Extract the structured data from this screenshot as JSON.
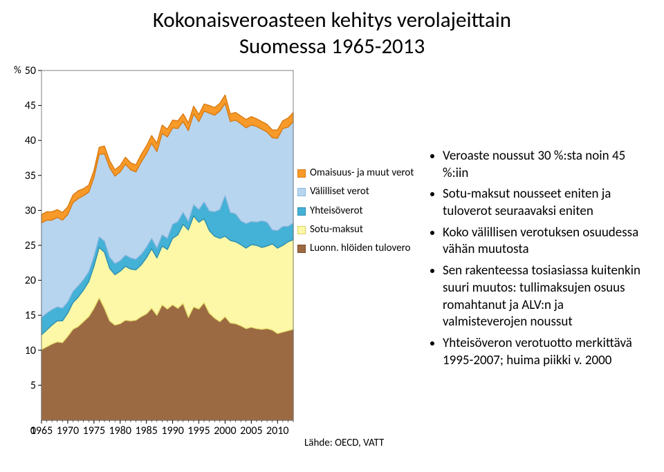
{
  "title": {
    "line1": "Kokonaisveroasteen kehitys  verolajeittain",
    "line2": "Suomessa 1965-2013",
    "fontsize": 31
  },
  "chart": {
    "type": "area-stacked",
    "y_title": "%",
    "ylim": [
      0,
      50
    ],
    "ytick_step": 5,
    "xlim": [
      1965,
      2013
    ],
    "xtick_step": 5,
    "xtick_last": 2010,
    "plot_bg": "#ffffff",
    "plot_border": "#808080",
    "axis_text_color": "#000000",
    "year_step_plot": 1,
    "series": [
      {
        "key": "luonn",
        "label": "Luonn. hlöiden tulovero",
        "fill": "#9c6a42",
        "stroke": "#7a4c28",
        "legend_swatch_border": "#7a4c28",
        "values": [
          10.1,
          10.5,
          10.9,
          11.2,
          11.1,
          12.0,
          13.0,
          13.4,
          14.1,
          14.8,
          16.0,
          17.5,
          16.0,
          14.2,
          13.6,
          13.8,
          14.3,
          14.2,
          14.3,
          14.8,
          15.2,
          16.0,
          15.0,
          16.5,
          15.9,
          16.5,
          16.0,
          16.7,
          14.7,
          16.2,
          15.9,
          16.8,
          15.3,
          14.6,
          14.1,
          14.8,
          13.9,
          13.8,
          13.5,
          13.1,
          13.3,
          13.1,
          13.0,
          13.1,
          12.9,
          12.4,
          12.6,
          12.8,
          13.0
        ]
      },
      {
        "key": "sotu",
        "label": "Sotu-maksut",
        "fill": "#fdf8a7",
        "stroke": "#e8e070",
        "legend_swatch_border": "#d8d060",
        "values": [
          2.1,
          2.4,
          2.7,
          3.0,
          3.1,
          3.3,
          3.8,
          4.2,
          4.5,
          5.0,
          6.0,
          7.2,
          8.0,
          7.5,
          7.2,
          7.5,
          7.7,
          7.4,
          7.2,
          7.4,
          8.0,
          8.5,
          8.2,
          8.4,
          8.5,
          9.5,
          10.5,
          11.3,
          12.5,
          13.0,
          12.4,
          12.0,
          11.8,
          11.7,
          11.9,
          11.5,
          11.8,
          11.7,
          11.6,
          11.5,
          11.8,
          11.9,
          11.7,
          11.8,
          12.3,
          12.2,
          12.4,
          12.7,
          12.8
        ]
      },
      {
        "key": "yhteiso",
        "label": "Yhteisöverot",
        "fill": "#44b1d6",
        "stroke": "#2e8fb0",
        "legend_swatch_border": "#2e8fb0",
        "values": [
          2.5,
          2.4,
          2.2,
          2.0,
          1.8,
          1.6,
          1.6,
          1.6,
          1.5,
          1.4,
          1.4,
          1.5,
          1.6,
          1.6,
          1.6,
          1.5,
          1.6,
          1.6,
          1.5,
          1.5,
          1.5,
          1.5,
          1.4,
          1.6,
          1.6,
          2.0,
          1.9,
          1.7,
          1.2,
          1.6,
          1.8,
          2.4,
          2.8,
          3.5,
          4.1,
          5.8,
          4.0,
          4.0,
          3.4,
          3.5,
          3.3,
          3.3,
          3.8,
          3.4,
          2.0,
          2.5,
          2.7,
          2.2,
          2.4
        ]
      },
      {
        "key": "valilliset",
        "label": "Välilliset verot",
        "fill": "#b8d5ef",
        "stroke": "#8ab8e0",
        "legend_swatch_border": "#8ab8e0",
        "values": [
          13.5,
          13.3,
          12.8,
          12.8,
          12.6,
          12.5,
          12.7,
          12.5,
          12.0,
          11.4,
          11.3,
          11.8,
          12.5,
          12.8,
          12.5,
          12.7,
          13.0,
          12.6,
          12.5,
          13.2,
          13.4,
          13.6,
          13.8,
          14.5,
          14.5,
          13.8,
          13.3,
          13.0,
          13.0,
          13.0,
          12.6,
          13.0,
          14.0,
          13.8,
          14.1,
          13.2,
          13.0,
          13.4,
          13.9,
          13.7,
          13.8,
          13.7,
          13.1,
          12.9,
          13.2,
          13.2,
          14.0,
          14.2,
          14.5
        ]
      },
      {
        "key": "omaisuus",
        "label": "Omaisuus- ja muut verot",
        "fill": "#f79a2a",
        "stroke": "#d97a10",
        "legend_swatch_border": "#d97a10",
        "values": [
          1.2,
          1.2,
          1.2,
          1.1,
          1.1,
          1.1,
          1.1,
          1.1,
          1.0,
          1.0,
          1.0,
          1.0,
          1.1,
          1.0,
          0.9,
          0.9,
          1.0,
          1.0,
          1.0,
          1.1,
          1.1,
          1.1,
          1.2,
          1.2,
          1.1,
          1.1,
          1.1,
          1.1,
          1.1,
          1.1,
          1.0,
          1.0,
          1.1,
          1.1,
          1.1,
          1.2,
          1.1,
          1.1,
          1.1,
          1.2,
          1.2,
          1.1,
          1.1,
          1.1,
          1.1,
          1.2,
          1.1,
          1.3,
          1.3
        ]
      }
    ]
  },
  "legend_order": [
    "omaisuus",
    "valilliset",
    "yhteiso",
    "sotu",
    "luonn"
  ],
  "bullets": [
    "Veroaste noussut 30 %:sta noin 45 %:iin",
    "Sotu-maksut nousseet eniten ja tuloverot seuraavaksi eniten",
    "Koko välillisen verotuksen osuudessa vähän muutosta",
    "Sen rakenteessa tosiasiassa kuitenkin suuri muutos: tullimaksujen osuus romahtanut ja ALV:n ja valmisteverojen noussut",
    "Yhteisöveron verotuotto merkittävä 1995-2007; huima piikki v. 2000"
  ],
  "source_label": "Lähde: OECD, VATT"
}
